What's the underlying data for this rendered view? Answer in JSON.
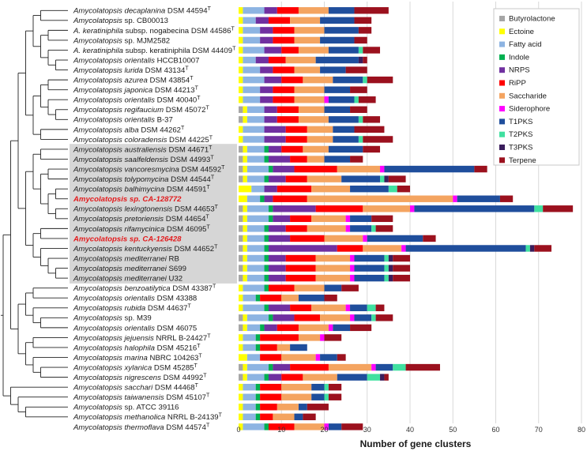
{
  "chart_data": {
    "type": "bar",
    "stacked": true,
    "orientation": "horizontal",
    "xlabel": "Number of gene clusters",
    "xlim": [
      0,
      80
    ],
    "xticks": [
      0,
      10,
      20,
      30,
      40,
      50,
      60,
      70,
      80
    ],
    "grid": true,
    "legend_position": "top-right",
    "series": [
      {
        "name": "Butyrolactone",
        "color": "#a6a6a6"
      },
      {
        "name": "Ectoine",
        "color": "#ffff00"
      },
      {
        "name": "Fatty acid",
        "color": "#8db4e2"
      },
      {
        "name": "Indole",
        "color": "#00b050"
      },
      {
        "name": "NRPS",
        "color": "#7030a0"
      },
      {
        "name": "RiPP",
        "color": "#ff0000"
      },
      {
        "name": "Saccharide",
        "color": "#f4a460"
      },
      {
        "name": "Siderophore",
        "color": "#ff00ff"
      },
      {
        "name": "T1PKS",
        "color": "#1f4e9c"
      },
      {
        "name": "T2PKS",
        "color": "#40e0a0"
      },
      {
        "name": "T3PKS",
        "color": "#3a1d5c"
      },
      {
        "name": "Terpene",
        "color": "#9b111e"
      }
    ],
    "strains": [
      {
        "name": "Amycolatopsis decaplanina",
        "suffix": " DSM 44594",
        "type_strain": true,
        "values": [
          0,
          1,
          5,
          0,
          3,
          5,
          7,
          0,
          6,
          0,
          0,
          8
        ]
      },
      {
        "name": "Amycolatopsis",
        "suffix": " sp. CB00013",
        "type_strain": false,
        "values": [
          0,
          1,
          3,
          0,
          3,
          5,
          7,
          0,
          8,
          0,
          0,
          4
        ]
      },
      {
        "name": "A. keratiniphila",
        "suffix": " subsp. nogabecina DSM 44586",
        "type_strain": true,
        "values": [
          0,
          1,
          4,
          0,
          3,
          5,
          7,
          0,
          8,
          0,
          0,
          3
        ]
      },
      {
        "name": "Amycolatopsis",
        "suffix": " sp. MJM2582",
        "type_strain": false,
        "values": [
          0,
          1,
          4,
          0,
          3,
          5,
          6,
          0,
          8,
          0,
          0,
          3
        ]
      },
      {
        "name": "A. keratiniphila",
        "suffix": " subsp. keratiniphila DSM 44409",
        "type_strain": true,
        "values": [
          0,
          1,
          5,
          0,
          4,
          4,
          7,
          0,
          7,
          1,
          0,
          4
        ]
      },
      {
        "name": "Amycolatopsis orientalis",
        "suffix": " HCCB10007",
        "type_strain": false,
        "values": [
          0,
          1,
          3,
          0,
          3,
          4,
          7,
          0,
          10,
          0,
          1,
          1
        ]
      },
      {
        "name": "Amycolatopsis lurida",
        "suffix": " DSM 43134",
        "type_strain": true,
        "values": [
          0,
          1,
          4,
          0,
          3,
          5,
          6,
          0,
          6,
          0,
          0,
          5
        ]
      },
      {
        "name": "Amycolatopsis azurea",
        "suffix": " DSM 43854",
        "type_strain": true,
        "values": [
          0,
          1,
          5,
          0,
          4,
          5,
          7,
          0,
          7,
          1,
          0,
          6
        ]
      },
      {
        "name": "Amycolatopsis japonica",
        "suffix": " DSM 44213",
        "type_strain": true,
        "values": [
          0,
          1,
          4,
          0,
          3,
          5,
          7,
          0,
          6,
          0,
          0,
          4
        ]
      },
      {
        "name": "Amycolatopsis orientalis",
        "suffix": " DSM 40040",
        "type_strain": true,
        "values": [
          0,
          1,
          4,
          0,
          3,
          5,
          7,
          1,
          6,
          1,
          0,
          4
        ]
      },
      {
        "name": "Amycolatopsis regifaucium",
        "suffix": " DSM 45072",
        "type_strain": true,
        "values": [
          1,
          1,
          4,
          0,
          3,
          5,
          6,
          0,
          6,
          0,
          0,
          4
        ]
      },
      {
        "name": "Amycolatopsis orientalis",
        "suffix": " B-37",
        "type_strain": false,
        "values": [
          1,
          1,
          4,
          0,
          3,
          5,
          7,
          0,
          7,
          1,
          0,
          4
        ]
      },
      {
        "name": "Amycolatopsis alba",
        "suffix": " DSM 44262",
        "type_strain": true,
        "values": [
          0,
          1,
          5,
          0,
          5,
          5,
          6,
          0,
          5,
          0,
          0,
          7
        ]
      },
      {
        "name": "Amycolatopsis coloradensis",
        "suffix": " DSM 44225",
        "type_strain": true,
        "values": [
          0,
          1,
          5,
          0,
          5,
          5,
          6,
          0,
          6,
          1,
          0,
          7
        ]
      },
      {
        "name": "Amycolatopsis australiensis",
        "suffix": " DSM 44671",
        "type_strain": true,
        "values": [
          1,
          1,
          4,
          1,
          3,
          5,
          6,
          0,
          8,
          0,
          0,
          4
        ]
      },
      {
        "name": "Amycolatopsis saalfeldensis",
        "suffix": " DSM 44993",
        "type_strain": true,
        "values": [
          1,
          1,
          4,
          1,
          5,
          4,
          4,
          0,
          6,
          0,
          0,
          3
        ]
      },
      {
        "name": "Amycolatopsis vancoresmycina",
        "suffix": " DSM 44592",
        "type_strain": true,
        "values": [
          1,
          1,
          5,
          1,
          5,
          10,
          10,
          1,
          21,
          0,
          0,
          3
        ]
      },
      {
        "name": "Amycolatopsis tolypomycina",
        "suffix": " DSM 44544",
        "type_strain": true,
        "values": [
          1,
          1,
          4,
          1,
          4,
          5,
          8,
          0,
          9,
          1,
          1,
          4
        ]
      },
      {
        "name": "Amycolatopsis balhimycina",
        "suffix": " DSM 44591",
        "type_strain": true,
        "values": [
          0,
          3,
          3,
          0,
          3,
          8,
          9,
          0,
          9,
          2,
          0,
          3
        ]
      },
      {
        "name": "Amycolatopsis sp. CA-128772",
        "suffix": "",
        "type_strain": false,
        "highlight": true,
        "values": [
          0,
          2,
          3,
          1,
          2,
          8,
          34,
          1,
          10,
          0,
          0,
          3
        ]
      },
      {
        "name": "Amycolatopsis lexingtonensis",
        "suffix": " DSM 44653",
        "type_strain": true,
        "values": [
          1,
          1,
          5,
          1,
          10,
          11,
          11,
          1,
          28,
          2,
          0,
          7
        ]
      },
      {
        "name": "Amycolatopsis pretoriensis",
        "suffix": " DSM 44654",
        "type_strain": true,
        "values": [
          1,
          1,
          5,
          1,
          4,
          5,
          8,
          1,
          5,
          0,
          0,
          5
        ]
      },
      {
        "name": "Amycolatopsis rifamycinica",
        "suffix": " DSM 46095",
        "type_strain": true,
        "values": [
          1,
          1,
          4,
          1,
          4,
          5,
          9,
          1,
          5,
          1,
          0,
          4
        ]
      },
      {
        "name": "Amycolatopsis sp. CA-126428",
        "suffix": "",
        "type_strain": false,
        "highlight": true,
        "values": [
          1,
          1,
          4,
          1,
          5,
          8,
          9,
          1,
          13,
          0,
          0,
          3
        ]
      },
      {
        "name": "Amycolatopsis kentuckyensis",
        "suffix": " DSM 44652",
        "type_strain": true,
        "values": [
          1,
          1,
          4,
          1,
          16,
          6,
          9,
          1,
          28,
          1,
          1,
          4
        ]
      },
      {
        "name": "Amycolatopsis mediterranei",
        "suffix": " RB",
        "type_strain": false,
        "values": [
          1,
          1,
          4,
          1,
          4,
          7,
          8,
          1,
          7,
          1,
          1,
          4
        ]
      },
      {
        "name": "Amycolatopsis mediterranei",
        "suffix": " S699",
        "type_strain": false,
        "values": [
          1,
          1,
          4,
          1,
          4,
          7,
          8,
          1,
          7,
          1,
          1,
          4
        ]
      },
      {
        "name": "Amycolatopsis mediterranei",
        "suffix": " U32",
        "type_strain": false,
        "values": [
          1,
          1,
          4,
          1,
          4,
          7,
          8,
          1,
          7,
          1,
          1,
          4
        ]
      },
      {
        "name": "Amycolatopsis benzoatilytica",
        "suffix": " DSM 43387",
        "type_strain": true,
        "values": [
          0,
          1,
          5,
          1,
          0,
          6,
          7,
          0,
          4,
          0,
          0,
          4
        ]
      },
      {
        "name": "Amycolatopsis orientalis",
        "suffix": " DSM 43388",
        "type_strain": false,
        "values": [
          0,
          1,
          3,
          1,
          0,
          5,
          4,
          0,
          6,
          0,
          0,
          3
        ]
      },
      {
        "name": "Amycolatopsis rubida",
        "suffix": " DSM 44637",
        "type_strain": true,
        "values": [
          0,
          1,
          5,
          1,
          5,
          5,
          8,
          1,
          4,
          2,
          0,
          2
        ]
      },
      {
        "name": "Amycolatopsis",
        "suffix": " sp. M39",
        "type_strain": false,
        "values": [
          1,
          1,
          5,
          1,
          5,
          6,
          7,
          1,
          4,
          1,
          0,
          4
        ]
      },
      {
        "name": "Amycolatopsis orientalis",
        "suffix": " DSM 46075",
        "type_strain": false,
        "values": [
          1,
          1,
          3,
          1,
          3,
          5,
          7,
          1,
          4,
          0,
          0,
          5
        ]
      },
      {
        "name": "Amycolatopsis jejuensis",
        "suffix": " NRRL B-24427",
        "type_strain": true,
        "values": [
          0,
          1,
          3,
          1,
          0,
          9,
          5,
          1,
          0,
          0,
          0,
          4
        ]
      },
      {
        "name": "Amycolatopsis halophila",
        "suffix": " DSM 45216",
        "type_strain": true,
        "values": [
          0,
          1,
          3,
          1,
          0,
          4,
          3,
          0,
          4,
          0,
          0,
          0
        ]
      },
      {
        "name": "Amycolatopsis marina",
        "suffix": " NBRC 104263",
        "type_strain": true,
        "values": [
          0,
          2,
          3,
          0,
          0,
          5,
          8,
          1,
          4,
          0,
          0,
          2
        ]
      },
      {
        "name": "Amycolatopsis xylanica",
        "suffix": " DSM 45285",
        "type_strain": true,
        "values": [
          1,
          1,
          5,
          1,
          4,
          9,
          10,
          1,
          4,
          3,
          0,
          8
        ]
      },
      {
        "name": "Amycolatopsis nigrescens",
        "suffix": " DSM 44992",
        "type_strain": true,
        "values": [
          1,
          1,
          4,
          1,
          3,
          5,
          8,
          0,
          7,
          3,
          1,
          1
        ]
      },
      {
        "name": "Amycolatopsis sacchari",
        "suffix": " DSM 44468",
        "type_strain": true,
        "values": [
          0,
          1,
          3,
          1,
          0,
          5,
          7,
          0,
          3,
          1,
          0,
          3
        ]
      },
      {
        "name": "Amycolatopsis taiwanensis",
        "suffix": " DSM 45107",
        "type_strain": true,
        "values": [
          0,
          1,
          3,
          1,
          0,
          5,
          7,
          0,
          3,
          1,
          0,
          3
        ]
      },
      {
        "name": "Amycolatopsis",
        "suffix": " sp. ATCC 39116",
        "type_strain": false,
        "values": [
          0,
          1,
          3,
          1,
          0,
          4,
          5,
          0,
          2,
          0,
          0,
          5
        ]
      },
      {
        "name": "Amycolatopsis methanolica",
        "suffix": " NRRL B-24139",
        "type_strain": true,
        "values": [
          0,
          1,
          3,
          1,
          0,
          3,
          5,
          0,
          2,
          0,
          0,
          3
        ]
      },
      {
        "name": "Amycolatopsis thermoflava",
        "suffix": " DSM 44574",
        "type_strain": true,
        "values": [
          0,
          1,
          5,
          1,
          0,
          6,
          7,
          1,
          3,
          0,
          0,
          5
        ]
      }
    ]
  },
  "type_strain_mark": "T"
}
